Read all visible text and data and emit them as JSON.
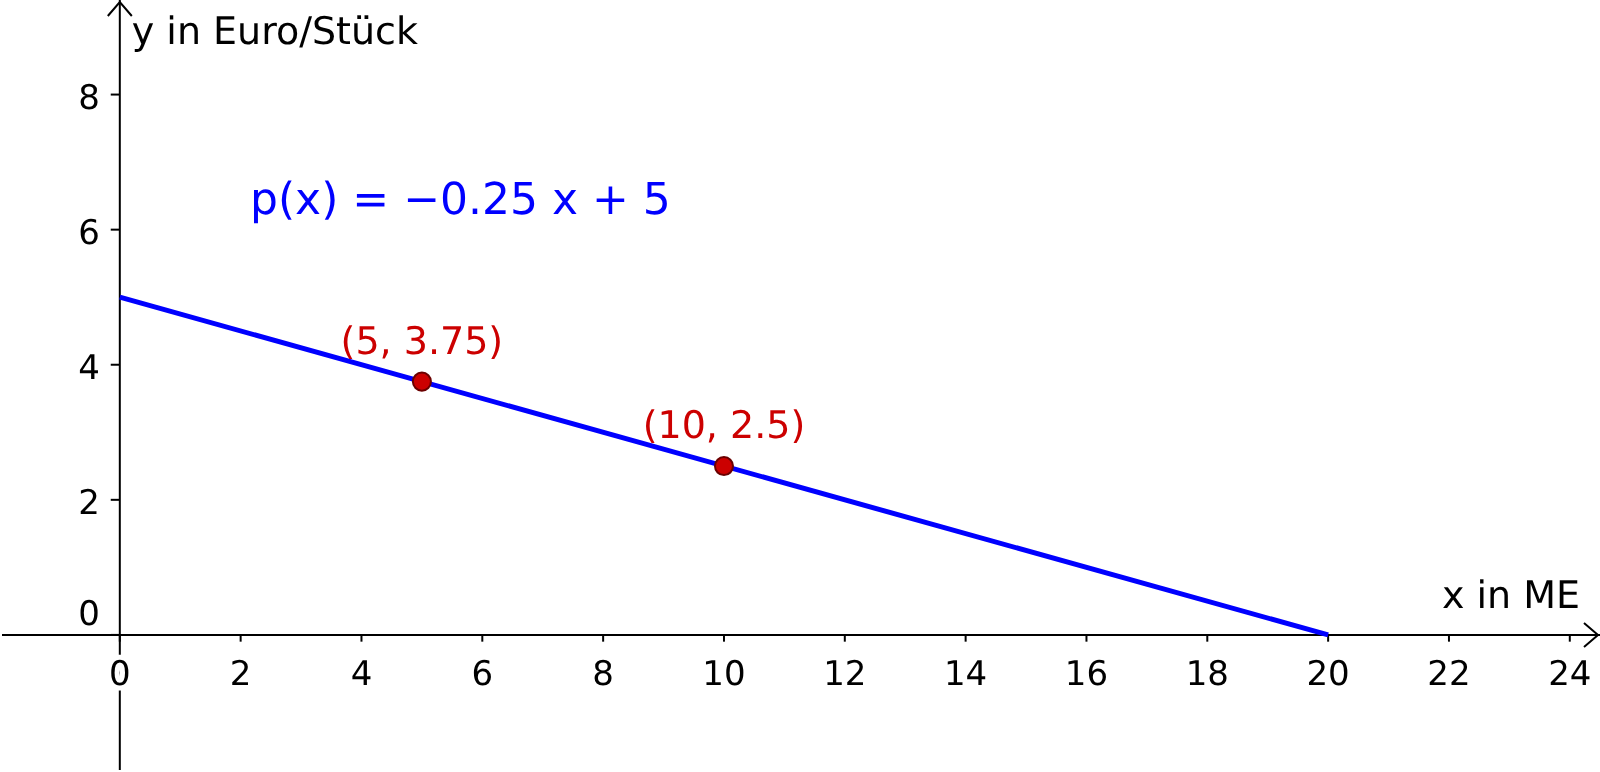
{
  "chart_data": {
    "type": "line",
    "xlabel": "x in ME",
    "ylabel": "y in Euro/Stück",
    "xlim": [
      -1.95,
      24.5
    ],
    "ylim": [
      -2,
      9.4
    ],
    "xticks": [
      0,
      2,
      4,
      6,
      8,
      10,
      12,
      14,
      16,
      18,
      20,
      22,
      24
    ],
    "yticks": [
      0,
      2,
      4,
      6,
      8
    ],
    "grid": false,
    "legend": false,
    "series": [
      {
        "x": [
          0,
          20
        ],
        "values": [
          5,
          0
        ],
        "color": "#0000ff",
        "marker": "none"
      },
      {
        "type": "scatter",
        "x": [
          5,
          10
        ],
        "values": [
          3.75,
          2.5
        ],
        "color": "#cc0000",
        "marker": "circle"
      }
    ],
    "annotations": [
      "p(x) = −0.25 x + 5",
      {
        "text": "(5, 3.75)",
        "x": 5,
        "y": 3.75
      },
      {
        "text": "(10, 2.5)",
        "x": 10,
        "y": 2.5
      }
    ]
  }
}
